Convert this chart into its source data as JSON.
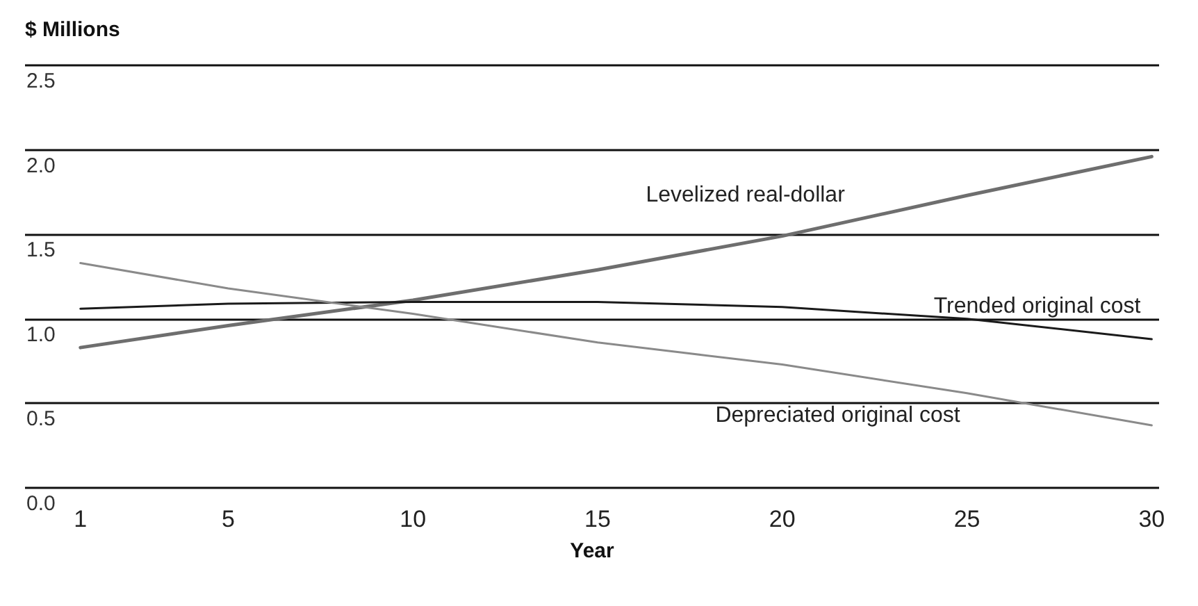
{
  "chart_data": {
    "type": "line",
    "ylabel": "$ Millions",
    "xlabel": "Year",
    "x": [
      1,
      5,
      10,
      15,
      20,
      25,
      30
    ],
    "series": [
      {
        "name": "Levelized real-dollar",
        "color": "#6e6e6e",
        "values": [
          0.83,
          0.96,
          1.11,
          1.29,
          1.49,
          1.73,
          1.96
        ]
      },
      {
        "name": "Trended original cost",
        "color": "#1a1a1a",
        "values": [
          1.06,
          1.09,
          1.1,
          1.1,
          1.07,
          1.0,
          0.88
        ]
      },
      {
        "name": "Depreciated original cost",
        "color": "#8a8a8a",
        "values": [
          1.33,
          1.18,
          1.03,
          0.86,
          0.73,
          0.56,
          0.37
        ]
      }
    ],
    "xlim": [
      -0.5,
      30.2
    ],
    "xticks": [
      1,
      5,
      10,
      15,
      20,
      25,
      30
    ],
    "ylim": [
      0,
      2.5
    ],
    "yticks": [
      {
        "value": 0,
        "label": "0.0"
      },
      0.5,
      {
        "value": 1,
        "label": "1.0"
      },
      1.5,
      {
        "value": 2,
        "label": "2.0"
      },
      2.5
    ],
    "grid": "y",
    "legend": false,
    "marker": "none",
    "line_style": "solid"
  }
}
